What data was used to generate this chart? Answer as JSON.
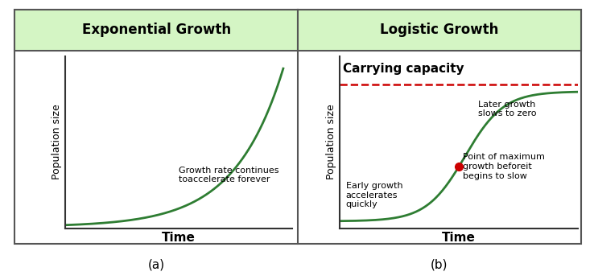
{
  "title_left": "Exponential Growth",
  "title_right": "Logistic Growth",
  "label_a": "(a)",
  "label_b": "(b)",
  "xlabel": "Time",
  "ylabel": "Population size",
  "header_bg_color": "#d4f5c4",
  "header_text_color": "#000000",
  "curve_color": "#2e7d32",
  "carrying_capacity_color": "#cc0000",
  "carrying_capacity_label": "Carrying capacity",
  "annotation_exp": "Growth rate continues\ntoaccelerate forever",
  "annotation_early": "Early growth\naccelerates\nquickly",
  "annotation_later": "Later growth\nslows to zero",
  "annotation_max": "Point of maximum\ngrowth beforeit\nbegins to slow",
  "border_color": "#555555",
  "title_fontsize": 12,
  "axis_label_fontsize": 9,
  "annotation_fontsize": 8,
  "carrying_capacity_fontsize": 11,
  "label_fontsize": 11
}
